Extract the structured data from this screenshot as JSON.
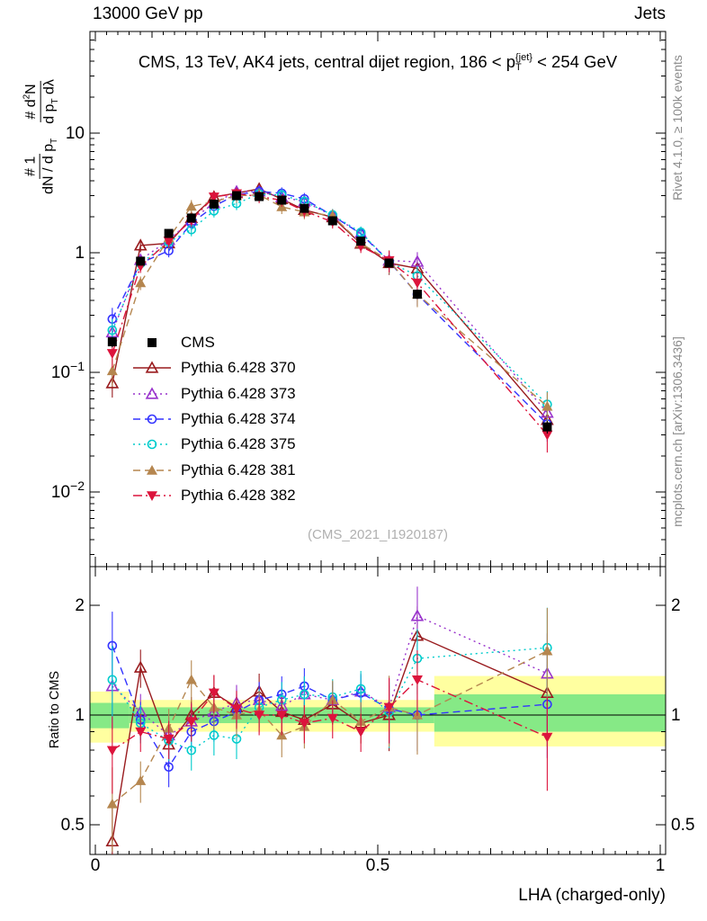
{
  "header": {
    "left": "13000 GeV pp",
    "right": "Jets"
  },
  "title_segments": [
    {
      "t": "CMS, 13 TeV, AK4 jets, central dijet region, 186 < p"
    },
    {
      "sup": "{jet}",
      "sub": "T"
    },
    {
      "t": " < 254 GeV"
    }
  ],
  "watermark": "(CMS_2021_I1920187)",
  "side_notes": {
    "top": "Rivet 4.1.0, ≥ 100k events",
    "bottom": "mcplots.cern.ch [arXiv:1306.3436]"
  },
  "ylabel_main": {
    "frac1_num": [
      {
        "t": "# 1"
      }
    ],
    "frac1_den": [
      {
        "t": "dN / d p"
      },
      {
        "sub": "T"
      }
    ],
    "frac2_num": [
      {
        "t": "# d"
      },
      {
        "sup": "2"
      },
      {
        "t": "N"
      }
    ],
    "frac2_den": [
      {
        "t": "d p"
      },
      {
        "sub": "T"
      },
      {
        "t": " dλ"
      }
    ]
  },
  "chart_data": {
    "type": "line",
    "title": "CMS, 13 TeV, AK4 jets, central dijet region, 186 < pT^{jet} < 254 GeV",
    "xlabel": "LHA (charged-only)",
    "ylabel_main": "(1/(dN/dpT)) d2N/(dpT dLambda)",
    "ylabel_ratio": "Ratio to CMS",
    "x_range": [
      0,
      1
    ],
    "x_ticks": [
      0,
      0.5,
      1
    ],
    "x_tick_labels": [
      "0",
      "0.5",
      "1"
    ],
    "y_main_scale": "log",
    "y_main_ticks": [
      10,
      1,
      0.1,
      0.01
    ],
    "y_main_range": [
      0.0024,
      65
    ],
    "y_ratio_scale": "log",
    "y_ratio_ticks": [
      2,
      1,
      0.5
    ],
    "y_ratio_range": [
      0.41,
      2.55
    ],
    "legend_position": "left-middle",
    "x": [
      0.03,
      0.08,
      0.13,
      0.17,
      0.21,
      0.25,
      0.29,
      0.33,
      0.37,
      0.42,
      0.47,
      0.52,
      0.57,
      0.8
    ],
    "series": [
      {
        "name": "CMS",
        "color": "#000000",
        "marker": "square-filled",
        "line": "none",
        "msize": 5,
        "rel_err": 0.05,
        "values": [
          0.18,
          0.85,
          1.45,
          1.95,
          2.55,
          3.0,
          2.95,
          2.75,
          2.35,
          1.85,
          1.25,
          0.82,
          0.45,
          0.035
        ],
        "ratio": null
      },
      {
        "name": "Pythia 6.428 370",
        "color": "#991b1e",
        "marker": "triangle-open",
        "line": "solid",
        "msize": 5,
        "rel_err": 0.12,
        "values": [
          0.081,
          1.15,
          1.2,
          1.95,
          2.93,
          3.15,
          3.42,
          2.81,
          2.28,
          1.98,
          1.19,
          0.82,
          0.74,
          0.04
        ],
        "ratio": [
          0.45,
          1.35,
          0.83,
          1.0,
          1.15,
          1.05,
          1.16,
          1.02,
          0.97,
          1.07,
          0.95,
          1.0,
          1.65,
          1.15
        ]
      },
      {
        "name": "Pythia 6.428 373",
        "color": "#9933cc",
        "marker": "triangle-open",
        "line": "dotted",
        "msize": 5,
        "rel_err": 0.12,
        "values": [
          0.216,
          0.87,
          1.28,
          1.87,
          2.6,
          3.24,
          3.25,
          2.92,
          2.68,
          2.04,
          1.45,
          0.86,
          0.84,
          0.046
        ],
        "ratio": [
          1.2,
          1.02,
          0.88,
          0.96,
          1.02,
          1.08,
          1.1,
          1.06,
          1.14,
          1.1,
          1.16,
          1.05,
          1.87,
          1.3
        ]
      },
      {
        "name": "Pythia 6.428 374",
        "color": "#3333ff",
        "marker": "circle-open",
        "line": "dashed",
        "msize": 4.5,
        "rel_err": 0.12,
        "values": [
          0.279,
          0.82,
          1.04,
          1.76,
          2.45,
          3.06,
          3.25,
          3.14,
          2.82,
          2.04,
          1.44,
          0.85,
          0.45,
          0.037
        ],
        "ratio": [
          1.55,
          0.97,
          0.72,
          0.9,
          0.96,
          1.02,
          1.1,
          1.14,
          1.2,
          1.1,
          1.15,
          1.04,
          1.0,
          1.07
        ]
      },
      {
        "name": "Pythia 6.428 375",
        "color": "#00cccc",
        "marker": "circle-open",
        "line": "dotted",
        "msize": 4.5,
        "rel_err": 0.12,
        "values": [
          0.225,
          0.81,
          1.23,
          1.56,
          2.24,
          2.58,
          3.1,
          3.03,
          2.68,
          2.07,
          1.48,
          0.84,
          0.64,
          0.054
        ],
        "ratio": [
          1.25,
          0.95,
          0.85,
          0.8,
          0.88,
          0.86,
          1.05,
          1.1,
          1.14,
          1.12,
          1.18,
          1.02,
          1.43,
          1.53
        ]
      },
      {
        "name": "Pythia 6.428 381",
        "color": "#b5864f",
        "marker": "triangle-filled",
        "line": "dashed",
        "msize": 5,
        "rel_err": 0.13,
        "values": [
          0.103,
          0.56,
          1.33,
          2.44,
          2.68,
          3.0,
          3.04,
          2.42,
          2.19,
          2.04,
          1.2,
          0.86,
          0.45,
          0.052
        ],
        "ratio": [
          0.57,
          0.66,
          0.92,
          1.25,
          1.05,
          1.0,
          1.03,
          0.88,
          0.93,
          1.1,
          0.96,
          1.05,
          1.0,
          1.5
        ]
      },
      {
        "name": "Pythia 6.428 382",
        "color": "#dc143c",
        "marker": "triangle-down-filled",
        "line": "dashdot",
        "msize": 5,
        "rel_err": 0.12,
        "values": [
          0.144,
          0.77,
          1.25,
          1.87,
          2.93,
          3.12,
          2.95,
          2.75,
          2.23,
          1.81,
          1.13,
          0.86,
          0.56,
          0.03
        ],
        "ratio": [
          0.8,
          0.9,
          0.86,
          0.96,
          1.15,
          1.04,
          1.0,
          1.0,
          0.95,
          0.98,
          0.9,
          1.05,
          1.25,
          0.87
        ]
      }
    ],
    "bands": {
      "yellow_color": "#ffffa0",
      "green_color": "#86e986",
      "segments": [
        {
          "x0": 0.0,
          "x1": 0.06,
          "yellow": [
            0.84,
            1.16
          ],
          "green": [
            0.92,
            1.08
          ]
        },
        {
          "x0": 0.06,
          "x1": 0.6,
          "yellow": [
            0.9,
            1.1
          ],
          "green": [
            0.95,
            1.05
          ]
        },
        {
          "x0": 0.6,
          "x1": 1.0,
          "yellow": [
            0.82,
            1.28
          ],
          "green": [
            0.9,
            1.14
          ]
        }
      ]
    }
  }
}
